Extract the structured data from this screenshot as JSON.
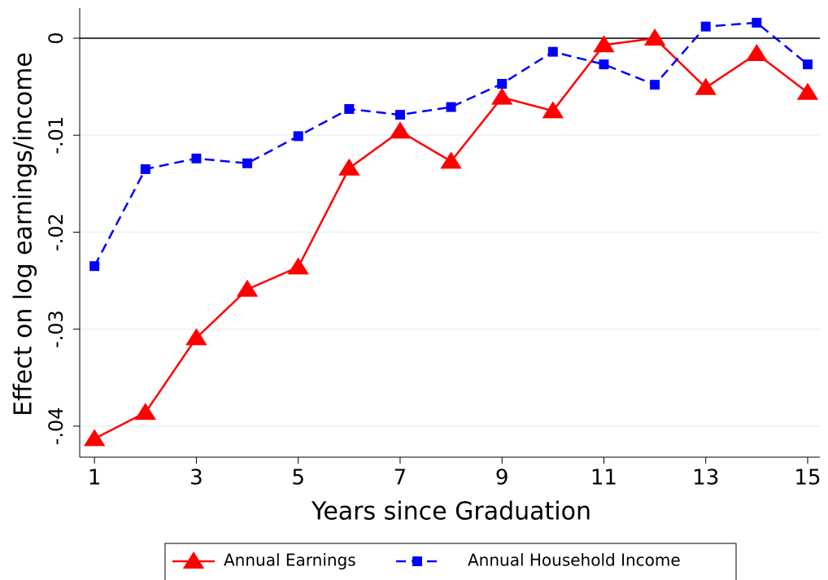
{
  "chart_data": {
    "type": "line",
    "y_label": "Effect on log earnings/income",
    "x_label": "Years since Graduation",
    "x": [
      1,
      2,
      3,
      4,
      5,
      6,
      7,
      8,
      9,
      10,
      11,
      12,
      13,
      14,
      15
    ],
    "series": [
      {
        "name": "Annual Earnings",
        "color": "#ff0000",
        "marker": "triangle",
        "dash": false,
        "values": [
          -0.0413,
          -0.0386,
          -0.0309,
          -0.0259,
          -0.0236,
          -0.0134,
          -0.0096,
          -0.0127,
          -0.0061,
          -0.0075,
          -0.0007,
          0.0,
          -0.0051,
          -0.0016,
          -0.0056
        ]
      },
      {
        "name": "Annual Household Income",
        "color": "#0000ff",
        "marker": "square",
        "dash": true,
        "values": [
          -0.0235,
          -0.0135,
          -0.0124,
          -0.0129,
          -0.0101,
          -0.0073,
          -0.0079,
          -0.0071,
          -0.0047,
          -0.0014,
          -0.0027,
          -0.0048,
          0.0012,
          0.0016,
          -0.0027
        ]
      }
    ],
    "xlim": [
      0.71,
      15.24
    ],
    "ylim": [
      -0.0432,
      0.0031
    ],
    "xticks": [
      1,
      3,
      5,
      7,
      9,
      11,
      13,
      15
    ],
    "yticks": [
      {
        "value": -0.04,
        "label": "-.04"
      },
      {
        "value": -0.03,
        "label": "-.03"
      },
      {
        "value": -0.02,
        "label": "-.02"
      },
      {
        "value": -0.01,
        "label": "-.01"
      },
      0
    ],
    "grid": true,
    "zero_line": true,
    "legend": "bottom"
  }
}
